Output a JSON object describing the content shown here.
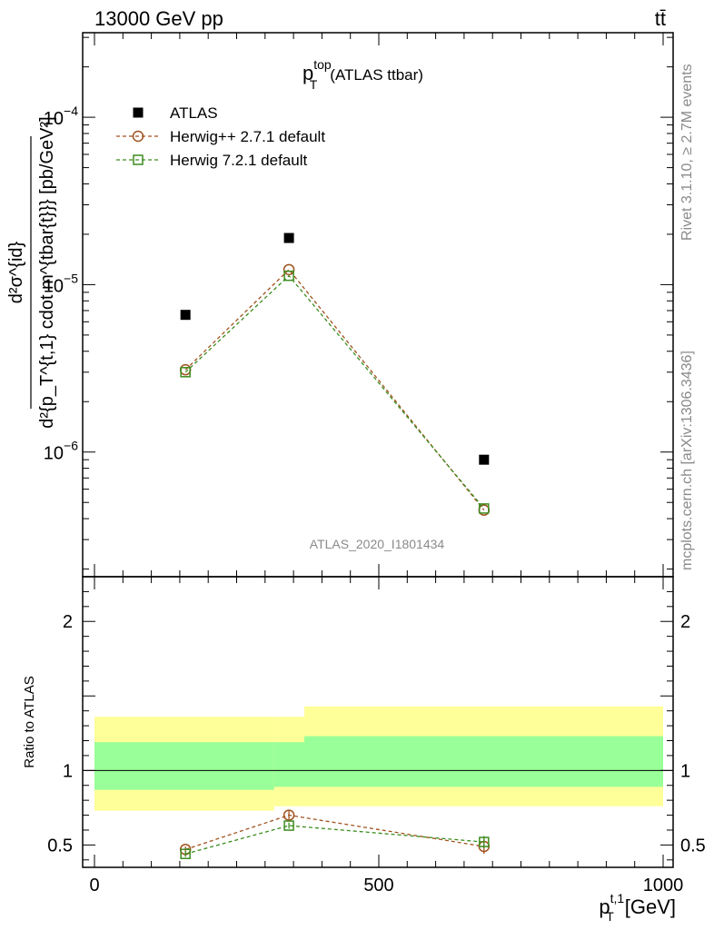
{
  "header": {
    "left": "13000 GeV pp",
    "right": "tt̄"
  },
  "side_labels": {
    "rivet": "Rivet 3.1.10, ≥ 2.7M events",
    "mcplots": "mcplots.cern.ch [arXiv:1306.3436]"
  },
  "watermark": "ATLAS_2020_I1801434",
  "chart_data": [
    {
      "type": "scatter",
      "panel": "main",
      "title_main": "p",
      "title_sup": "top",
      "title_sub": "T",
      "title_suffix": "(ATLAS ttbar)",
      "y_scale": "log",
      "ylim": [
        1.8e-07,
        0.00032
      ],
      "xlim": [
        -20,
        1000
      ],
      "y_ticks": [
        {
          "value": 0.0001,
          "mantissa": "10",
          "exp": "−4"
        },
        {
          "value": 1e-05,
          "mantissa": "10",
          "exp": "−5"
        },
        {
          "value": 1e-06,
          "mantissa": "10",
          "exp": "−6"
        }
      ],
      "ylabel": {
        "numerator": "d²σ^{id}",
        "denominator": "d²{p_T^{t,1} cdot m^{tbar{t}}} [pb/GeV²]"
      },
      "legend_position": "top-left",
      "series": [
        {
          "name": "ATLAS",
          "marker": "square-filled",
          "color": "#000000",
          "linestyle": "none",
          "x": [
            160,
            342,
            685
          ],
          "y": [
            6.6e-06,
            1.9e-05,
            9e-07
          ]
        },
        {
          "name": "Herwig++ 2.7.1 default",
          "marker": "circle-open",
          "color": "#a0521e",
          "linestyle": "dashed",
          "x": [
            160,
            342,
            685
          ],
          "y": [
            3.1e-06,
            1.23e-05,
            4.5e-07
          ]
        },
        {
          "name": "Herwig 7.2.1 default",
          "marker": "square-open",
          "color": "#3c8c1e",
          "linestyle": "dashed",
          "x": [
            160,
            342,
            685
          ],
          "y": [
            3e-06,
            1.13e-05,
            4.6e-07
          ]
        }
      ]
    },
    {
      "type": "scatter",
      "panel": "ratio",
      "ylabel": "Ratio to ATLAS",
      "xlabel_main": "p",
      "xlabel_sup": "t,1",
      "xlabel_sub": "T",
      "xlabel_unit": "[GeV]",
      "xlim": [
        -20,
        1000
      ],
      "ylim": [
        0.35,
        2.3
      ],
      "x_ticks": [
        {
          "value": 0,
          "label": "0"
        },
        {
          "value": 500,
          "label": "500"
        },
        {
          "value": 1000,
          "label": "1000"
        }
      ],
      "y_ticks": [
        {
          "value": 0.5,
          "label": "0.5"
        },
        {
          "value": 1,
          "label": "1"
        },
        {
          "value": 2,
          "label": "2"
        }
      ],
      "bands": [
        {
          "x0": 0,
          "x1": 316,
          "yellow": [
            0.73,
            1.36
          ],
          "green": [
            0.87,
            1.19
          ]
        },
        {
          "x0": 316,
          "x1": 369,
          "yellow": [
            0.76,
            1.36
          ],
          "green": [
            0.89,
            1.19
          ]
        },
        {
          "x0": 369,
          "x1": 1000,
          "yellow": [
            0.76,
            1.43
          ],
          "green": [
            0.89,
            1.23
          ]
        }
      ],
      "series": [
        {
          "name": "Herwig++ 2.7.1 default",
          "marker": "circle-open",
          "color": "#a0521e",
          "x": [
            160,
            342,
            685
          ],
          "y": [
            0.47,
            0.7,
            0.49
          ],
          "err": [
            0.02,
            0.03,
            0.05
          ]
        },
        {
          "name": "Herwig 7.2.1 default",
          "marker": "square-open",
          "color": "#3c8c1e",
          "x": [
            160,
            342,
            685
          ],
          "y": [
            0.44,
            0.63,
            0.52
          ],
          "err": [
            0.02,
            0.02,
            0.04
          ]
        }
      ]
    }
  ]
}
